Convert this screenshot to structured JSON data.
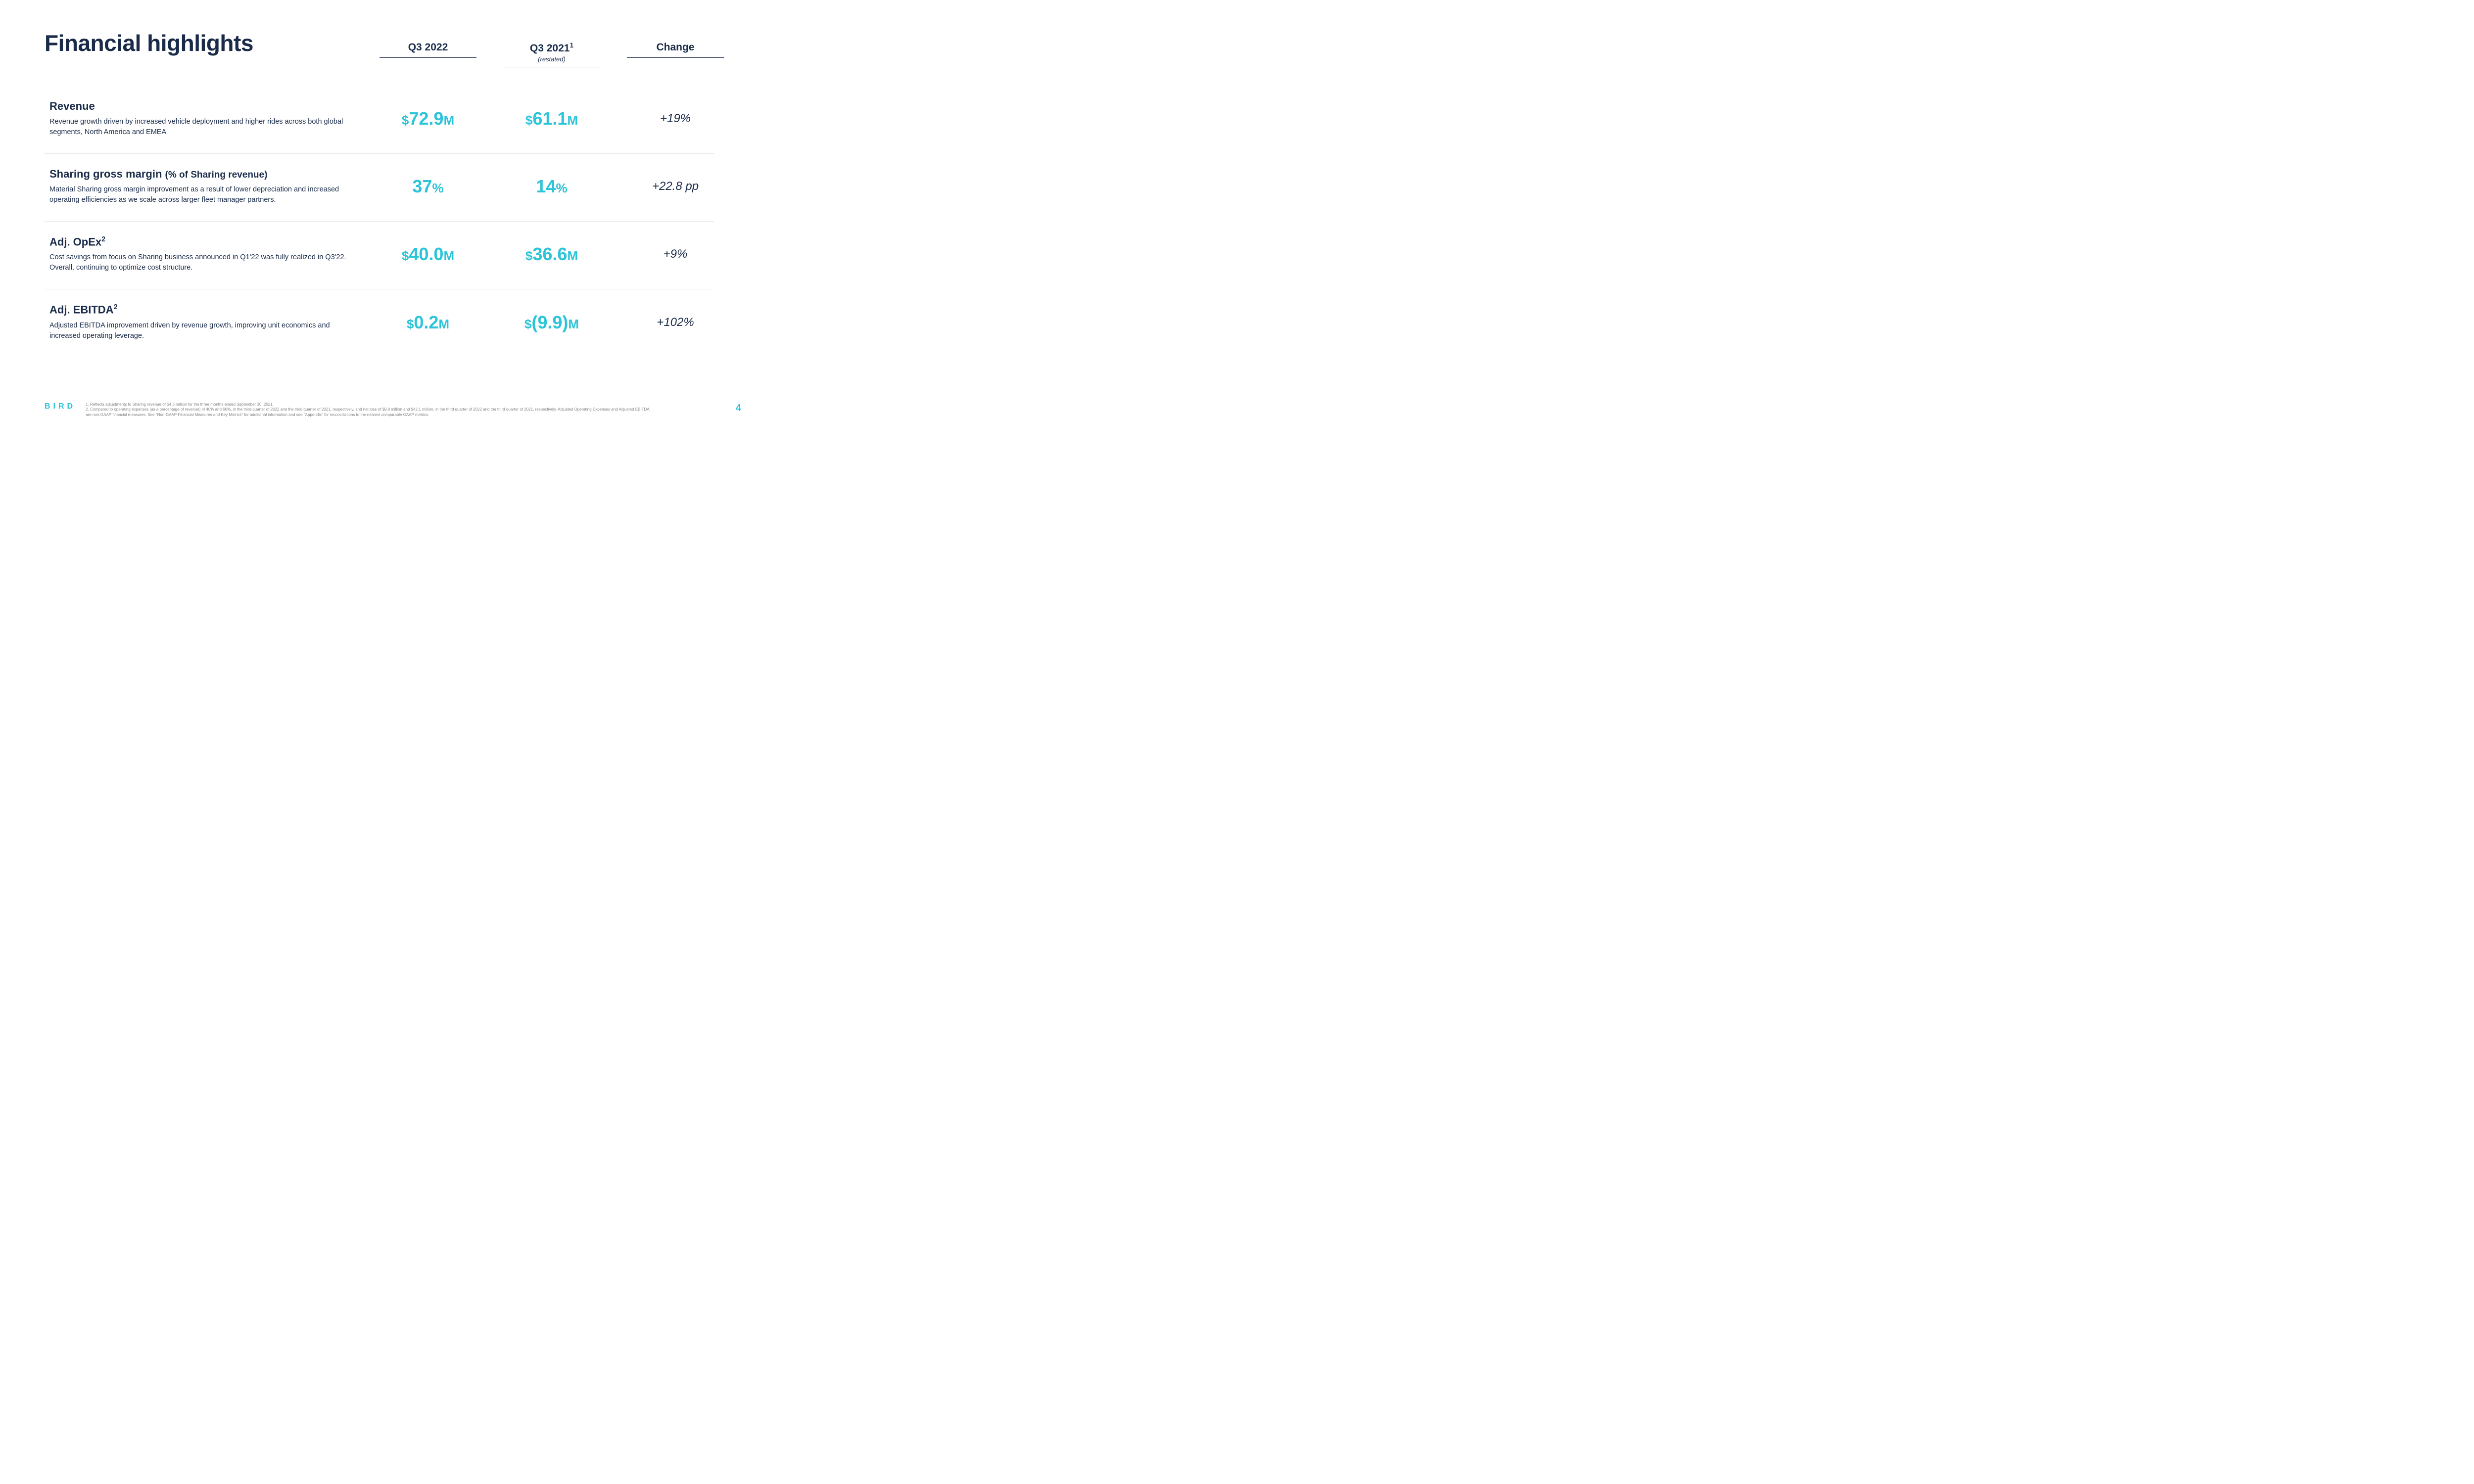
{
  "title": "Financial highlights",
  "colors": {
    "accent": "#2bc4d8",
    "text_dark": "#1a2b4a",
    "divider": "#e8e8e8",
    "footnote": "#888888",
    "background": "#ffffff"
  },
  "columns": {
    "col1": {
      "label": "Q3 2022",
      "sublabel": ""
    },
    "col2": {
      "label": "Q3 2021",
      "sup": "1",
      "sublabel": "(restated)"
    },
    "col3": {
      "label": "Change",
      "sublabel": ""
    }
  },
  "rows": [
    {
      "title": "Revenue",
      "title_sup": "",
      "desc": "Revenue growth driven by increased vehicle deployment and higher rides across both global segments, North America and EMEA",
      "v1_prefix": "$",
      "v1_number": "72.9",
      "v1_suffix": "M",
      "v2_prefix": "$",
      "v2_number": "61.1",
      "v2_suffix": "M",
      "change": "+19%"
    },
    {
      "title": "Sharing gross margin ",
      "title_paren": "(% of Sharing revenue)",
      "title_sup": "",
      "desc": "Material Sharing gross margin improvement as a result of lower depreciation and increased operating efficiencies as we scale across larger fleet manager partners.",
      "v1_prefix": "",
      "v1_number": "37",
      "v1_suffix": "%",
      "v2_prefix": "",
      "v2_number": "14",
      "v2_suffix": "%",
      "change": "+22.8 pp"
    },
    {
      "title": "Adj. OpEx",
      "title_sup": "2",
      "desc": "Cost savings from focus on Sharing business announced in Q1'22 was fully realized in Q3'22. Overall, continuing to optimize cost structure.",
      "v1_prefix": "$",
      "v1_number": "40.0",
      "v1_suffix": "M",
      "v2_prefix": "$",
      "v2_number": "36.6",
      "v2_suffix": "M",
      "change": "+9%"
    },
    {
      "title": "Adj. EBITDA",
      "title_sup": "2",
      "desc": "Adjusted EBITDA improvement driven by revenue growth, improving unit economics and increased operating leverage.",
      "v1_prefix": "$",
      "v1_number": "0.2",
      "v1_suffix": "M",
      "v2_prefix": "$",
      "v2_number": "(9.9)",
      "v2_suffix": "M",
      "change": "+102%"
    }
  ],
  "logo": "BIRD",
  "footnotes": {
    "f1": "1.   Reflects adjustments to Sharing revenue of $4.3 million for the three months ended September 30, 2021.",
    "f2": "2.   Compared to operating expenses (as a percentage of revenue) of 40% and 66%, in the third quarter of 2022 and the third quarter of 2021, respectively, and net loss of $9.8 million and $42.1 million, in the third quarter of 2022 and the third quarter of 2021, respectively. Adjusted Operating Expenses and Adjusted EBITDA are non-GAAP financial measures. See \"Non-GAAP Financial Measures and Key Metrics\" for additional information and see \"Appendix\" for reconciliations to the nearest comparable GAAP metrics."
  },
  "page_number": "4"
}
